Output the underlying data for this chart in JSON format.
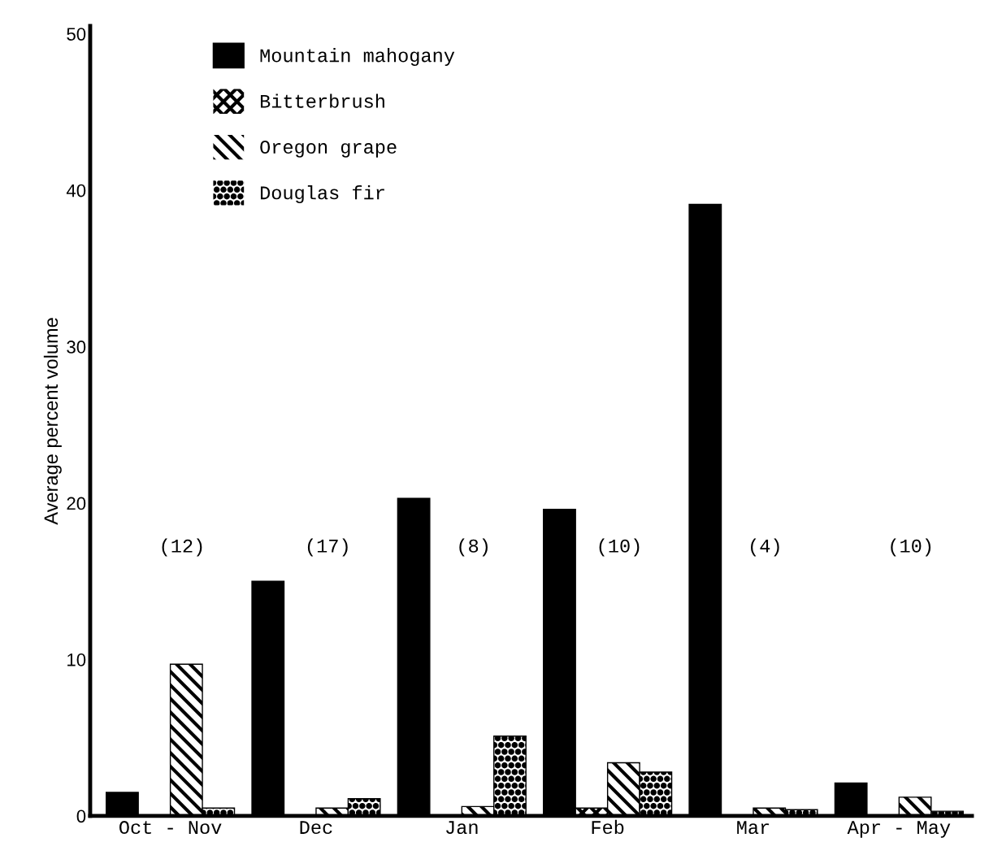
{
  "chart_data": {
    "type": "bar",
    "ylabel": "Average percent volume",
    "categories": [
      "Oct - Nov",
      "Dec",
      "Jan",
      "Feb",
      "Mar",
      "Apr - May"
    ],
    "series": [
      {
        "name": "Mountain mahogany",
        "color": "#000000",
        "values": [
          1.5,
          15.0,
          20.3,
          19.6,
          39.1,
          2.1
        ]
      },
      {
        "name": "Bitterbrush",
        "color": "#000000",
        "values": [
          0,
          0,
          0,
          0.5,
          0,
          0
        ]
      },
      {
        "name": "Oregon grape",
        "color": "#000000",
        "values": [
          9.7,
          0.5,
          0.6,
          3.4,
          0.5,
          1.2
        ]
      },
      {
        "name": "Douglas fir",
        "color": "#000000",
        "values": [
          0.5,
          1.1,
          5.1,
          2.8,
          0.4,
          0.3
        ]
      }
    ],
    "ylim": [
      0,
      50.5
    ],
    "yticks": [
      0,
      10,
      20,
      30,
      40,
      50
    ],
    "grid": false,
    "legend": "top left",
    "annotations": [
      "(12)",
      "(17)",
      "(8)",
      "(10)",
      "(4)",
      "(10)"
    ]
  }
}
